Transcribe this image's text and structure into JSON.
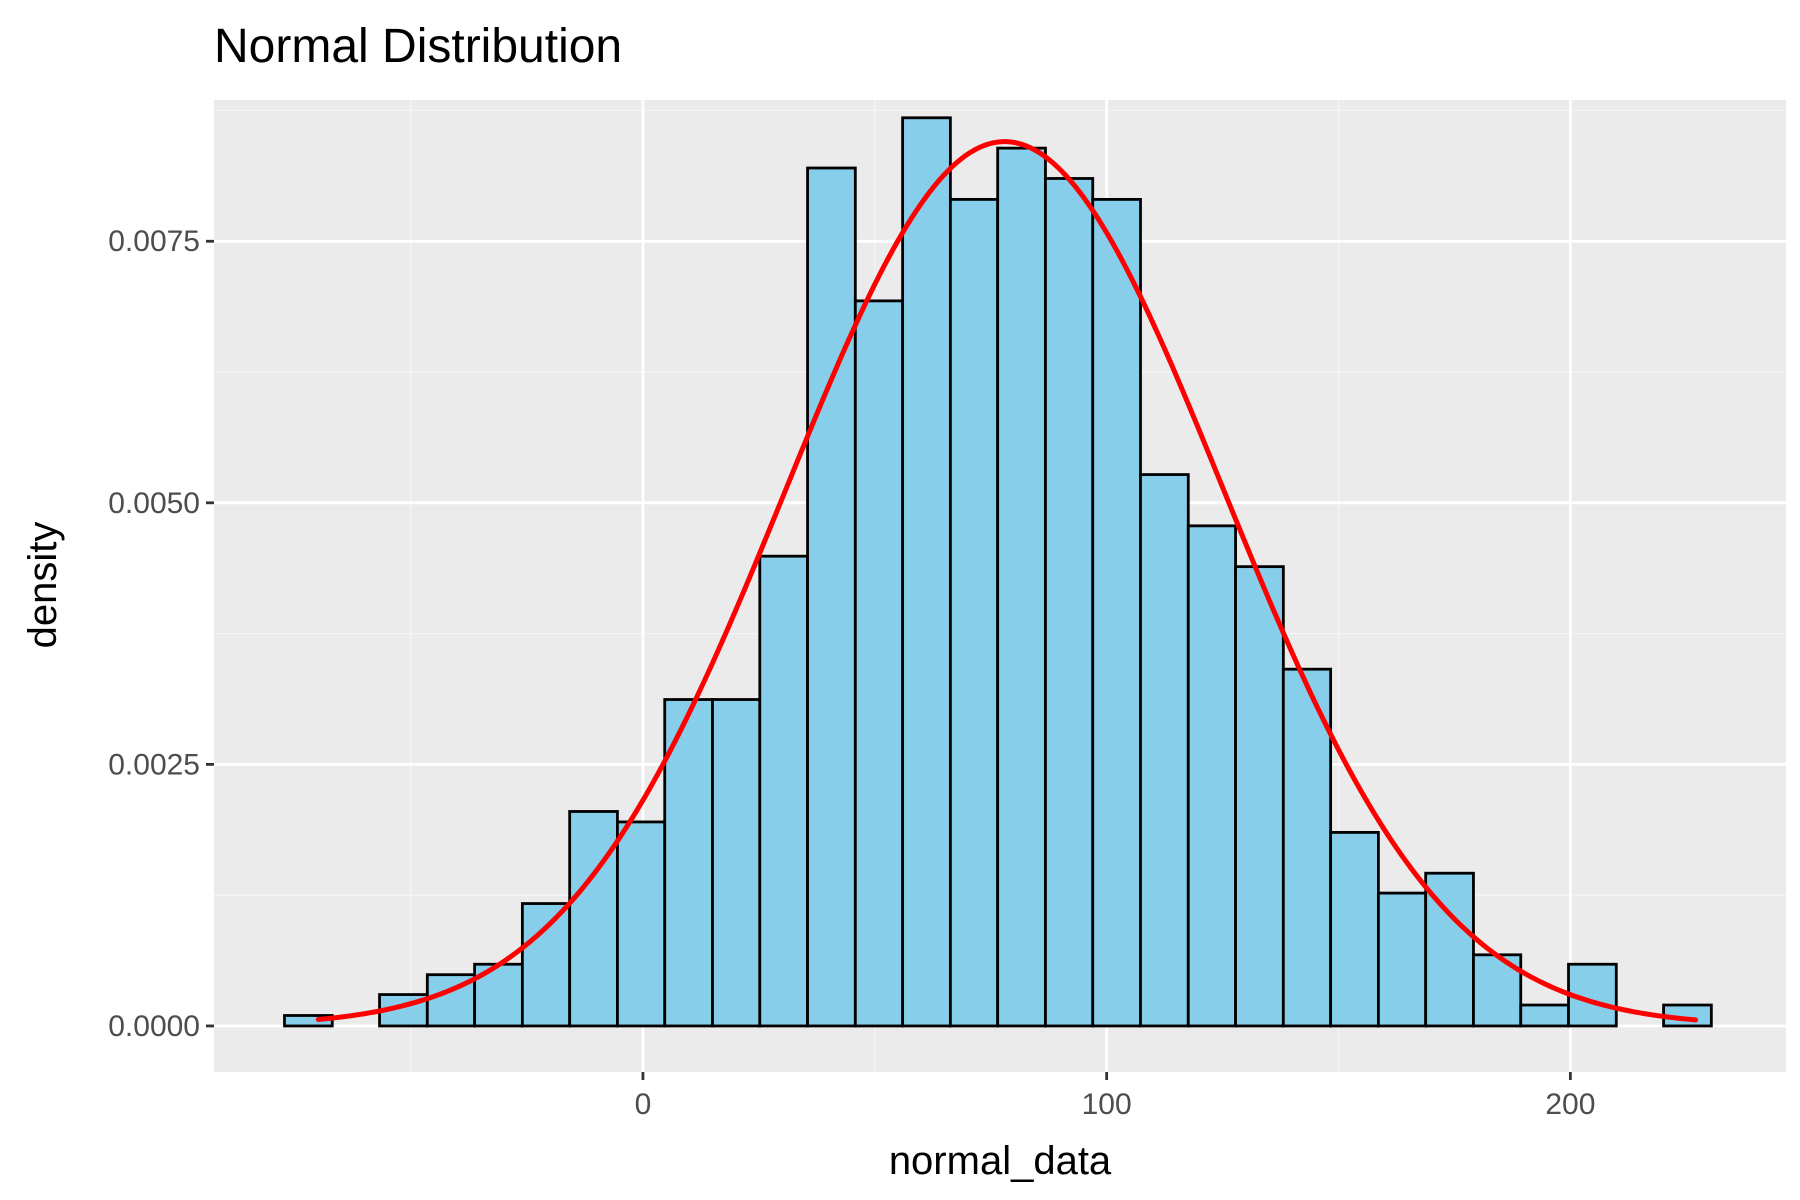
{
  "chart_data": {
    "type": "bar",
    "title": "Normal Distribution",
    "xlabel": "normal_data",
    "ylabel": "density",
    "xlim": [
      -92.5,
      246.5
    ],
    "ylim": [
      -0.00044,
      0.00885
    ],
    "x_ticks": [
      0,
      100,
      200
    ],
    "x_tick_labels": [
      "0",
      "100",
      "200"
    ],
    "y_ticks": [
      0.0,
      0.0025,
      0.005,
      0.0075
    ],
    "y_tick_labels": [
      "0.0000",
      "0.0025",
      "0.0050",
      "0.0075"
    ],
    "grid": true,
    "bin_width": 10.26,
    "bins": [
      {
        "x0": -77.3,
        "x1": -67.0,
        "density": 0.0001
      },
      {
        "x0": -67.0,
        "x1": -56.8,
        "density": 0.0
      },
      {
        "x0": -56.8,
        "x1": -46.5,
        "density": 0.0003
      },
      {
        "x0": -46.5,
        "x1": -36.3,
        "density": 0.00049
      },
      {
        "x0": -36.3,
        "x1": -26.0,
        "density": 0.00059
      },
      {
        "x0": -26.0,
        "x1": -15.8,
        "density": 0.00117
      },
      {
        "x0": -15.8,
        "x1": -5.5,
        "density": 0.00205
      },
      {
        "x0": -5.5,
        "x1": 4.7,
        "density": 0.00195
      },
      {
        "x0": 4.7,
        "x1": 15.0,
        "density": 0.00312
      },
      {
        "x0": 15.0,
        "x1": 25.2,
        "density": 0.00312
      },
      {
        "x0": 25.2,
        "x1": 35.5,
        "density": 0.00449
      },
      {
        "x0": 35.5,
        "x1": 45.8,
        "density": 0.0082
      },
      {
        "x0": 45.8,
        "x1": 56.0,
        "density": 0.00693
      },
      {
        "x0": 56.0,
        "x1": 66.3,
        "density": 0.00868
      },
      {
        "x0": 66.3,
        "x1": 76.5,
        "density": 0.0079
      },
      {
        "x0": 76.5,
        "x1": 86.8,
        "density": 0.00839
      },
      {
        "x0": 86.8,
        "x1": 97.0,
        "density": 0.0081
      },
      {
        "x0": 97.0,
        "x1": 107.3,
        "density": 0.0079
      },
      {
        "x0": 107.3,
        "x1": 117.6,
        "density": 0.00527
      },
      {
        "x0": 117.6,
        "x1": 127.8,
        "density": 0.00478
      },
      {
        "x0": 127.8,
        "x1": 138.1,
        "density": 0.00439
      },
      {
        "x0": 138.1,
        "x1": 148.3,
        "density": 0.00341
      },
      {
        "x0": 148.3,
        "x1": 158.6,
        "density": 0.00185
      },
      {
        "x0": 158.6,
        "x1": 168.8,
        "density": 0.00127
      },
      {
        "x0": 168.8,
        "x1": 179.1,
        "density": 0.00146
      },
      {
        "x0": 179.1,
        "x1": 189.3,
        "density": 0.00068
      },
      {
        "x0": 189.3,
        "x1": 199.6,
        "density": 0.0002
      },
      {
        "x0": 199.6,
        "x1": 209.9,
        "density": 0.00059
      },
      {
        "x0": 209.9,
        "x1": 220.1,
        "density": 0.0
      },
      {
        "x0": 220.1,
        "x1": 230.4,
        "density": 0.0002
      }
    ],
    "density_curve": {
      "x_range": [
        -70,
        227
      ],
      "mean": 78,
      "sd": 47.2
    },
    "colors": {
      "panel_background": "#ebebeb",
      "grid_major": "#ffffff",
      "grid_minor": "#f5f5f5",
      "bar_fill": "#87ceeb",
      "bar_stroke": "#000000",
      "curve": "#ff0000",
      "tick_mark": "#333333",
      "tick_label": "#4d4d4d"
    }
  }
}
